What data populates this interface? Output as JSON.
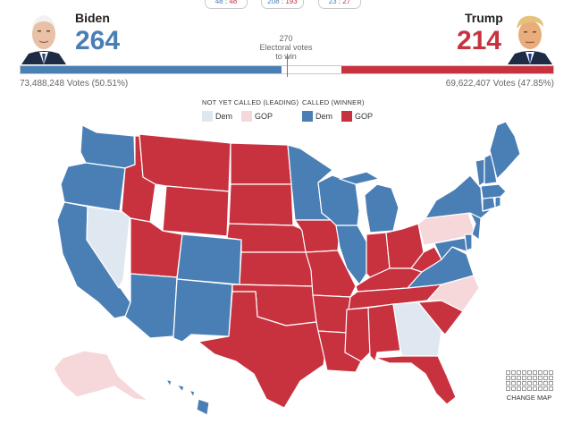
{
  "top_counts": [
    {
      "dem": "48",
      "sep": ":",
      "gop": "48"
    },
    {
      "dem": "208",
      "sep": ":",
      "gop": "193"
    },
    {
      "dem": "23",
      "sep": ":",
      "gop": "27"
    }
  ],
  "dem": {
    "name": "Biden",
    "electoral_votes": "264",
    "popular": "73,488,248 Votes (50.51%)",
    "ev_share": 0.4907
  },
  "gop": {
    "name": "Trump",
    "electoral_votes": "214",
    "popular": "69,622,407 Votes (47.85%)",
    "ev_share": 0.3978
  },
  "threshold": {
    "value": "270",
    "line1": "Electoral votes",
    "line2": "to win"
  },
  "legend": {
    "leading_title": "NOT YET CALLED (LEADING)",
    "winner_title": "CALLED (WINNER)",
    "dem_label": "Dem",
    "gop_label": "GOP"
  },
  "colors": {
    "dem_called": "#4a7fb5",
    "gop_called": "#c8323f",
    "dem_leading": "#dfe8f1",
    "gop_leading": "#f6d7da"
  },
  "change_map_label": "CHANGE MAP",
  "map": {
    "type": "us-states-choropleth",
    "states": {
      "WA": "dem_called",
      "OR": "dem_called",
      "CA": "dem_called",
      "NV": "dem_leading",
      "ID": "gop_called",
      "MT": "gop_called",
      "WY": "gop_called",
      "UT": "gop_called",
      "AZ": "dem_called",
      "CO": "dem_called",
      "NM": "dem_called",
      "ND": "gop_called",
      "SD": "gop_called",
      "NE": "gop_called",
      "KS": "gop_called",
      "OK": "gop_called",
      "TX": "gop_called",
      "MN": "dem_called",
      "IA": "gop_called",
      "MO": "gop_called",
      "AR": "gop_called",
      "LA": "gop_called",
      "WI": "dem_called",
      "IL": "dem_called",
      "MI": "dem_called",
      "IN": "gop_called",
      "OH": "gop_called",
      "KY": "gop_called",
      "TN": "gop_called",
      "MS": "gop_called",
      "AL": "gop_called",
      "GA": "dem_leading",
      "FL": "gop_called",
      "SC": "gop_called",
      "NC": "gop_leading",
      "VA": "dem_called",
      "WV": "gop_called",
      "PA": "gop_leading",
      "NY": "dem_called",
      "VT": "dem_called",
      "NH": "dem_called",
      "ME": "dem_called",
      "MA": "dem_called",
      "CT": "dem_called",
      "RI": "dem_called",
      "NJ": "dem_called",
      "DE": "dem_called",
      "MD": "dem_called",
      "AK": "gop_leading",
      "HI": "dem_called"
    }
  }
}
